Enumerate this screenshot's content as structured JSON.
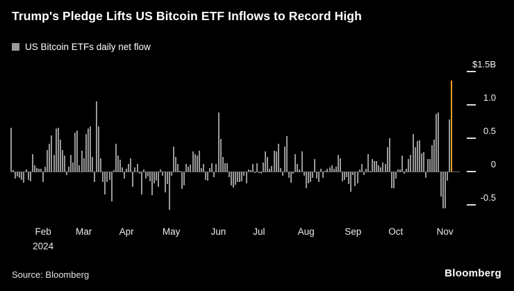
{
  "header": {
    "title": "Trump's Pledge Lifts US Bitcoin ETF Inflows to Record High",
    "legend_label": "US Bitcoin ETFs daily net flow"
  },
  "footer": {
    "source": "Source: Bloomberg",
    "brand": "Bloomberg"
  },
  "chart_data": {
    "type": "bar",
    "title": "Trump's Pledge Lifts US Bitcoin ETF Inflows to Record High",
    "series_label": "US Bitcoin ETFs daily net flow",
    "unit": "$B (daily net flow)",
    "ylim": [
      -0.75,
      1.55
    ],
    "grid": false,
    "legend_position": "top-left",
    "y_axis": [
      {
        "label": "$1.5B",
        "value": 1.5
      },
      {
        "label": "1.0",
        "value": 1.0
      },
      {
        "label": "0.5",
        "value": 0.5
      },
      {
        "label": "0",
        "value": 0
      },
      {
        "label": "-0.5",
        "value": -0.5
      }
    ],
    "x_axis": [
      {
        "label": "Feb",
        "index": 14
      },
      {
        "label": "Mar",
        "index": 33
      },
      {
        "label": "Apr",
        "index": 53
      },
      {
        "label": "May",
        "index": 74
      },
      {
        "label": "Jun",
        "index": 96
      },
      {
        "label": "Jul",
        "index": 115
      },
      {
        "label": "Aug",
        "index": 137
      },
      {
        "label": "Sep",
        "index": 159
      },
      {
        "label": "Oct",
        "index": 179
      },
      {
        "label": "Nov",
        "index": 202
      }
    ],
    "x_year": "2024",
    "values": [
      0.66,
      0.02,
      -0.09,
      -0.06,
      -0.08,
      -0.11,
      -0.16,
      0.03,
      -0.11,
      -0.14,
      0.26,
      0.09,
      0.05,
      0.04,
      0.04,
      -0.15,
      0.07,
      0.32,
      0.42,
      0.54,
      0.25,
      0.65,
      0.66,
      0.48,
      0.32,
      0.24,
      -0.04,
      0.07,
      0.25,
      0.14,
      0.58,
      0.61,
      0.09,
      0.31,
      0.2,
      0.56,
      0.65,
      0.68,
      0.22,
      -0.15,
      1.05,
      0.68,
      0.2,
      -0.15,
      -0.33,
      -0.15,
      -0.11,
      -0.44,
      0.02,
      0.42,
      0.24,
      0.18,
      0.06,
      -0.09,
      0.04,
      0.11,
      0.2,
      -0.22,
      0.06,
      0.12,
      -0.02,
      -0.33,
      0.03,
      -0.09,
      -0.06,
      -0.13,
      -0.34,
      -0.17,
      -0.12,
      -0.22,
      0.03,
      -0.05,
      -0.3,
      -0.18,
      -0.56,
      -0.05,
      0.38,
      0.22,
      0.12,
      0.01,
      -0.25,
      -0.2,
      0.12,
      0.07,
      0.1,
      0.3,
      0.26,
      0.24,
      0.31,
      0.05,
      0.11,
      -0.11,
      -0.12,
      0.05,
      0.13,
      -0.07,
      0.11,
      0.89,
      0.49,
      0.22,
      0.13,
      0.13,
      -0.07,
      -0.2,
      -0.23,
      -0.19,
      -0.15,
      -0.15,
      -0.14,
      -0.05,
      -0.17,
      0.03,
      0.02,
      0.12,
      -0.01,
      0.13,
      -0.01,
      -0.02,
      0.14,
      0.3,
      0.22,
      0.04,
      0.08,
      0.31,
      0.3,
      0.42,
      0.05,
      -0.05,
      0.38,
      0.53,
      -0.08,
      -0.16,
      -0.02,
      0.26,
      0.12,
      0.03,
      0.3,
      -0.05,
      -0.24,
      -0.17,
      -0.15,
      -0.08,
      0.19,
      -0.09,
      -0.15,
      0.04,
      -0.08,
      0.01,
      0.04,
      0.06,
      0.09,
      0.04,
      0.07,
      0.25,
      0.2,
      -0.13,
      -0.11,
      -0.07,
      -0.18,
      -0.29,
      -0.04,
      -0.21,
      -0.17,
      0.03,
      0.12,
      -0.04,
      0.04,
      0.26,
      0.01,
      0.19,
      0.16,
      0.16,
      0.09,
      0.06,
      0.14,
      0.11,
      0.37,
      0.5,
      -0.24,
      -0.24,
      -0.09,
      0.03,
      0.03,
      0.24,
      -0.02,
      0.04,
      0.19,
      0.25,
      0.56,
      0.37,
      0.46,
      0.47,
      0.27,
      0.29,
      -0.08,
      0.19,
      0.19,
      0.4,
      0.48,
      0.87,
      0.89,
      -0.36,
      -0.54,
      -0.54,
      -0.12,
      0.78,
      1.37
    ],
    "highlight_index": 206,
    "highlight_label": "record high inflow",
    "colors": {
      "background": "#000000",
      "bar": "#9a9a9a",
      "highlight": "#f5a12e",
      "text": "#ffffff",
      "zero_line": "#6f6f6f"
    }
  }
}
